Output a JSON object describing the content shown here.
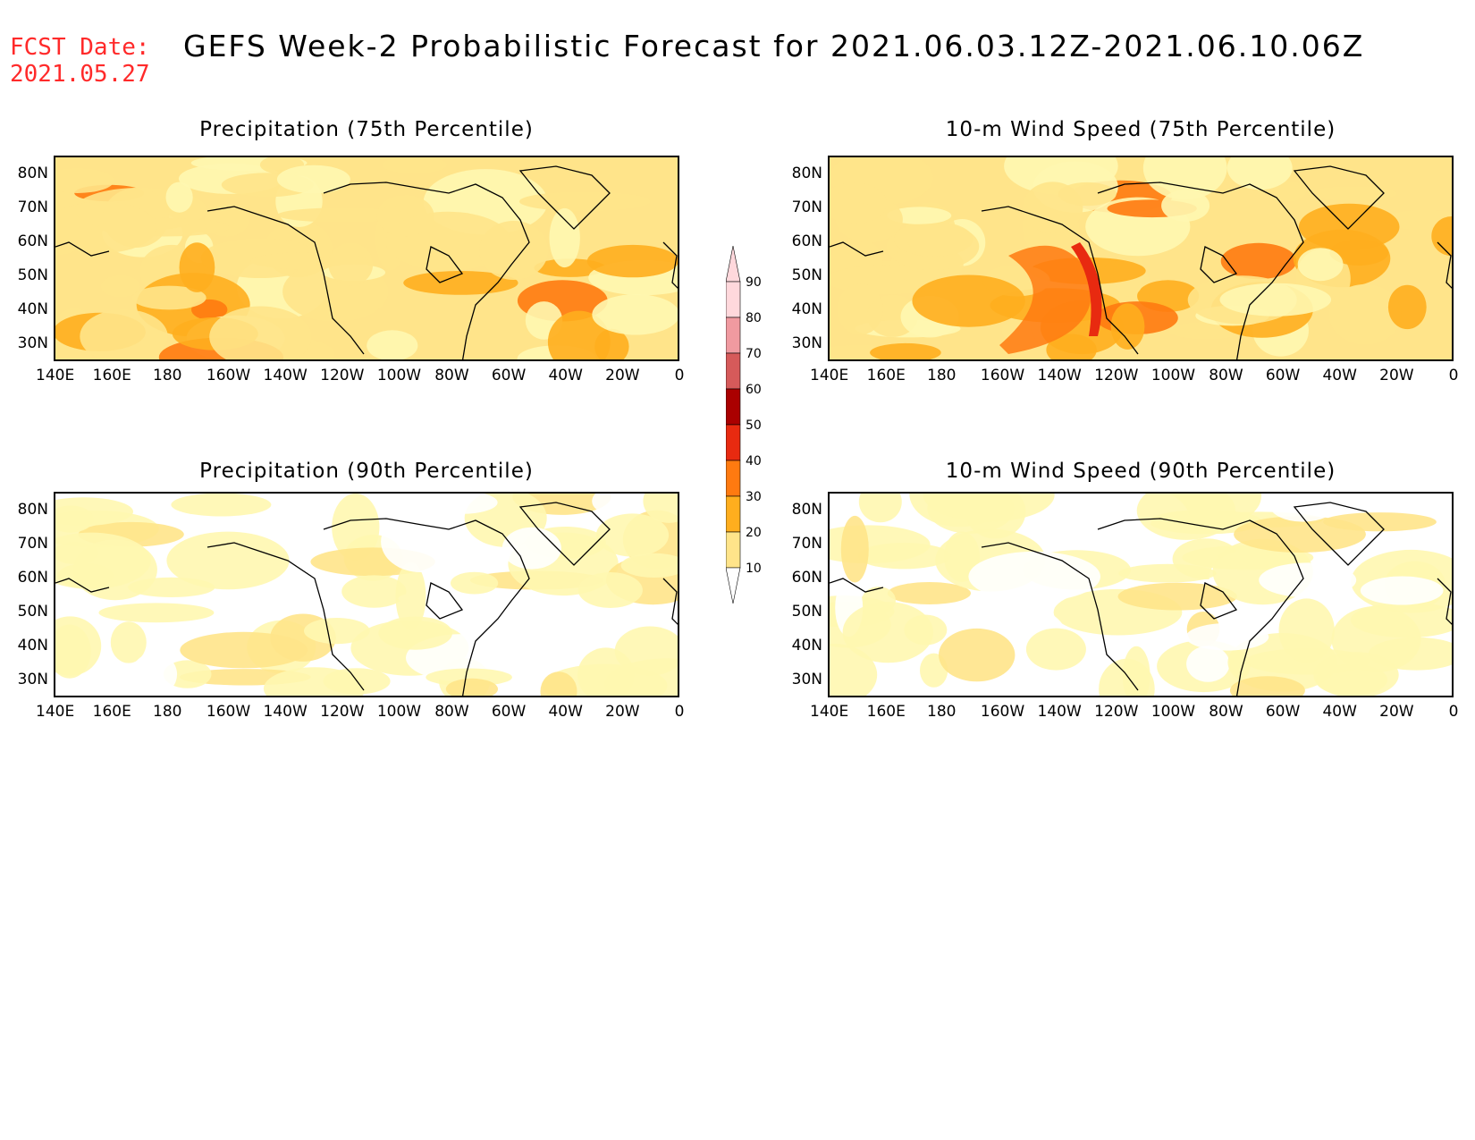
{
  "header": {
    "fcst_label": "FCST Date:",
    "fcst_date": "2021.05.27",
    "title": "GEFS Week-2 Probabilistic Forecast for 2021.06.03.12Z-2021.06.10.06Z"
  },
  "panels": [
    {
      "id": "precip75",
      "title": "Precipitation (75th Percentile)",
      "intensity": 0.65
    },
    {
      "id": "wind75",
      "title": "10-m Wind Speed (75th Percentile)",
      "intensity": 0.85
    },
    {
      "id": "precip90",
      "title": "Precipitation (90th Percentile)",
      "intensity": 0.2
    },
    {
      "id": "wind90",
      "title": "10-m Wind Speed (90th Percentile)",
      "intensity": 0.25
    }
  ],
  "axes": {
    "x_ticks": [
      "140E",
      "160E",
      "180",
      "160W",
      "140W",
      "120W",
      "100W",
      "80W",
      "60W",
      "40W",
      "20W",
      "0"
    ],
    "y_ticks": [
      "80N",
      "70N",
      "60N",
      "50N",
      "40N",
      "30N"
    ]
  },
  "colorbar": {
    "levels": [
      "10",
      "20",
      "30",
      "40",
      "50",
      "60",
      "70",
      "80",
      "90"
    ],
    "colors": [
      "#fff7b0",
      "#ffe48a",
      "#ffae1e",
      "#ff7a10",
      "#e82a10",
      "#aa0000",
      "#d65a5a",
      "#f09aa0",
      "#ffd8dc"
    ]
  }
}
